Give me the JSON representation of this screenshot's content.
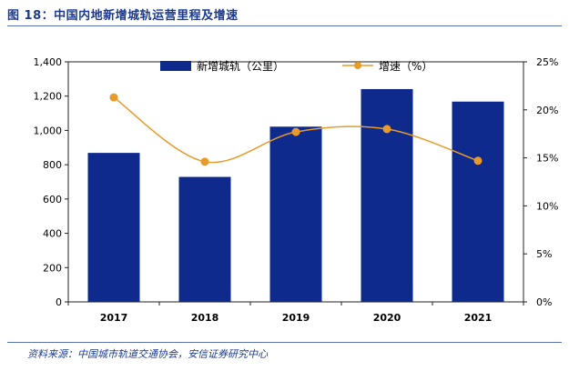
{
  "header": {
    "title": "图 18：中国内地新增城轨运营里程及增速"
  },
  "footer": {
    "source": "资料来源：中国城市轨道交通协会，安信证券研究中心"
  },
  "colors": {
    "bar": "#0e2a8c",
    "line": "#e89a2a",
    "title": "#1b3a8f",
    "axis": "#222222"
  },
  "chart_data": {
    "type": "bar",
    "categories": [
      "2017",
      "2018",
      "2019",
      "2020",
      "2021"
    ],
    "series": [
      {
        "name": "新增城轨（公里）",
        "type": "bar",
        "axis": "left",
        "values": [
          869,
          729,
          1022,
          1241,
          1168
        ]
      },
      {
        "name": "增速（%）",
        "type": "line",
        "axis": "right",
        "values": [
          21.3,
          14.6,
          17.7,
          18.0,
          14.7
        ]
      }
    ],
    "y_left": {
      "min": 0,
      "max": 1400,
      "ticks": [
        "0",
        "200",
        "400",
        "600",
        "800",
        "1,000",
        "1,200",
        "1,400"
      ]
    },
    "y_right": {
      "min": 0,
      "max": 25,
      "ticks": [
        "0%",
        "5%",
        "10%",
        "15%",
        "20%",
        "25%"
      ]
    },
    "legend": [
      "新增城轨（公里）",
      "增速（%）"
    ],
    "legend_position": "top"
  }
}
